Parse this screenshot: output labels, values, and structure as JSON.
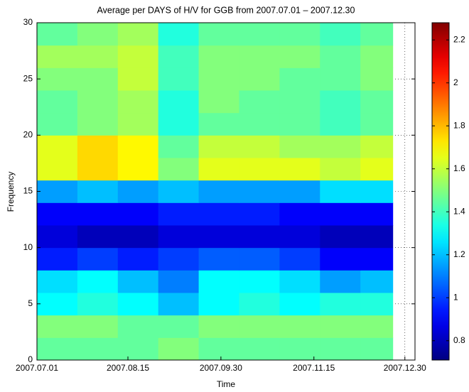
{
  "chart_data": {
    "type": "heatmap",
    "title": "Average per DAYS of H/V for GGB  from 2007.07.01 – 2007.12.30",
    "xlabel": "Time",
    "ylabel": "Frequency",
    "x_edges": [
      "2007.07.01",
      "2007.07.21",
      "2007.08.10",
      "2007.08.30",
      "2007.09.19",
      "2007.10.09",
      "2007.10.29",
      "2007.11.18",
      "2007.12.08",
      "2007.12.24"
    ],
    "y_edges": [
      0,
      2,
      4,
      6,
      8,
      10,
      12,
      14,
      16,
      18,
      20,
      22,
      24,
      26,
      28,
      30
    ],
    "z": [
      [
        1.45,
        1.45,
        1.45,
        1.5,
        1.45,
        1.45,
        1.45,
        1.45,
        1.45
      ],
      [
        1.5,
        1.5,
        1.45,
        1.45,
        1.5,
        1.5,
        1.5,
        1.5,
        1.5
      ],
      [
        1.3,
        1.35,
        1.3,
        1.2,
        1.3,
        1.35,
        1.3,
        1.35,
        1.35
      ],
      [
        1.25,
        1.3,
        1.2,
        1.1,
        1.3,
        1.3,
        1.25,
        1.15,
        1.2
      ],
      [
        0.95,
        1.0,
        0.95,
        1.0,
        1.05,
        1.05,
        1.0,
        0.9,
        0.9
      ],
      [
        0.85,
        0.8,
        0.8,
        0.85,
        0.85,
        0.85,
        0.85,
        0.8,
        0.8
      ],
      [
        0.9,
        0.9,
        0.9,
        0.95,
        0.95,
        0.95,
        0.9,
        0.9,
        0.9
      ],
      [
        1.15,
        1.2,
        1.15,
        1.2,
        1.15,
        1.15,
        1.15,
        1.25,
        1.25
      ],
      [
        1.65,
        1.75,
        1.7,
        1.5,
        1.65,
        1.65,
        1.65,
        1.6,
        1.65
      ],
      [
        1.65,
        1.75,
        1.7,
        1.45,
        1.6,
        1.6,
        1.55,
        1.55,
        1.6
      ],
      [
        1.45,
        1.5,
        1.55,
        1.35,
        1.45,
        1.45,
        1.45,
        1.4,
        1.45
      ],
      [
        1.45,
        1.5,
        1.55,
        1.35,
        1.5,
        1.45,
        1.45,
        1.4,
        1.45
      ],
      [
        1.5,
        1.5,
        1.6,
        1.4,
        1.5,
        1.5,
        1.45,
        1.45,
        1.5
      ],
      [
        1.55,
        1.55,
        1.6,
        1.4,
        1.5,
        1.5,
        1.5,
        1.45,
        1.5
      ],
      [
        1.45,
        1.5,
        1.55,
        1.35,
        1.45,
        1.45,
        1.45,
        1.4,
        1.45
      ]
    ],
    "xlim": [
      "2007.07.01",
      "2008.01.04"
    ],
    "xticks": [
      "2007.07.01",
      "2007.08.15",
      "2007.09.30",
      "2007.11.15",
      "2007.12.30"
    ],
    "ylim": [
      0,
      30
    ],
    "yticks": [
      0,
      5,
      10,
      15,
      20,
      25,
      30
    ],
    "clim": [
      0.71,
      2.28
    ],
    "cticks": [
      0.8,
      1,
      1.2,
      1.4,
      1.6,
      1.8,
      2,
      2.2
    ],
    "colormap": "jet",
    "grid": true
  }
}
